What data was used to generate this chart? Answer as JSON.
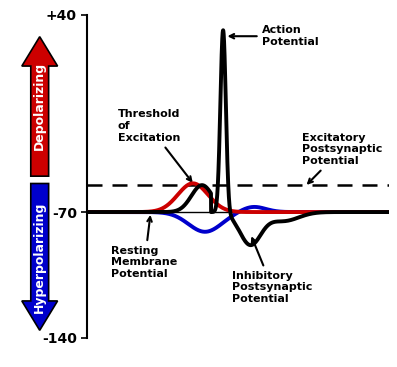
{
  "ylim": [
    -140,
    40
  ],
  "xlim": [
    0,
    10
  ],
  "resting_potential": -70,
  "threshold": -55,
  "yticks": [
    -140,
    -70,
    40
  ],
  "yticklabels": [
    "-140",
    "-70",
    "+40"
  ],
  "bg_color": "#ffffff",
  "action_potential_color": "#000000",
  "epsp_color": "#cc0000",
  "ipsp_color": "#0000cc",
  "depolarizing_color": "#cc0000",
  "hyperpolarizing_color": "#0000cc"
}
